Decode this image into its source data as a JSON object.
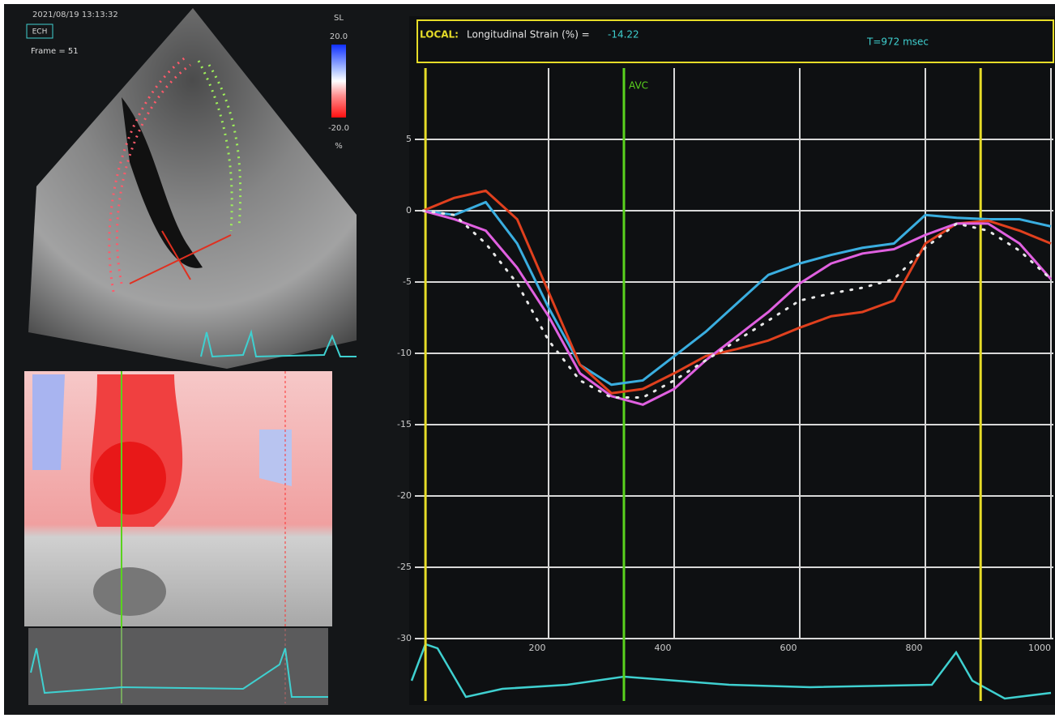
{
  "header": {
    "timestamp": "2021/08/19 13:13:32",
    "mode": "ECH",
    "frame": "Frame = 51"
  },
  "colorbar": {
    "title": "SL",
    "max": "20.0",
    "min": "-20.0",
    "unit": "%"
  },
  "strain_header": {
    "prefix": "LOCAL:",
    "label": "Longitudinal Strain (%) =",
    "value": "-14.22",
    "time": "T=972 msec"
  },
  "chart_data": {
    "type": "line",
    "x": [
      0,
      50,
      100,
      150,
      200,
      250,
      300,
      350,
      400,
      450,
      500,
      550,
      600,
      650,
      700,
      750,
      800,
      850,
      900,
      950,
      1000
    ],
    "series": [
      {
        "color": "#3aaee0",
        "values": [
          0,
          -0.3,
          0.6,
          -2.3,
          -6.8,
          -10.8,
          -12.2,
          -11.9,
          -10.2,
          -8.5,
          -6.5,
          -4.5,
          -3.7,
          -3.1,
          -2.6,
          -2.3,
          -0.3,
          -0.5,
          -0.6,
          -0.6,
          -1.1
        ]
      },
      {
        "color": "#e0401e",
        "values": [
          0,
          0.9,
          1.4,
          -0.6,
          -5.7,
          -10.8,
          -12.8,
          -12.5,
          -11.4,
          -10.2,
          -9.7,
          -9.1,
          -8.2,
          -7.4,
          -7.1,
          -6.3,
          -2.3,
          -0.9,
          -0.7,
          -1.4,
          -2.3
        ]
      },
      {
        "color": "#e060e0",
        "values": [
          0,
          -0.6,
          -1.4,
          -4,
          -7.4,
          -11.4,
          -13,
          -13.6,
          -12.5,
          -10.5,
          -8.8,
          -7.1,
          -5.1,
          -3.7,
          -3,
          -2.7,
          -1.7,
          -0.9,
          -0.9,
          -2.3,
          -4.8
        ]
      },
      {
        "color": "#e8e8e8",
        "dotted": true,
        "values": [
          0,
          -0.3,
          -2.3,
          -5.1,
          -9.1,
          -11.9,
          -13.1,
          -13.1,
          -11.9,
          -10.5,
          -9.1,
          -7.7,
          -6.3,
          -5.8,
          -5.4,
          -4.8,
          -2.6,
          -0.9,
          -1.4,
          -2.8,
          -4.8
        ]
      }
    ],
    "annotations": [
      {
        "label": "AVC",
        "x": 320,
        "color": "#5ad21e"
      }
    ],
    "markers": [
      4,
      888
    ],
    "xlim": [
      0,
      1000
    ],
    "ylim": [
      -30,
      10
    ],
    "xticks": [
      200,
      400,
      600,
      800,
      1000
    ],
    "yticks": [
      5,
      0,
      -5,
      -10,
      -15,
      -20,
      -25,
      -30
    ],
    "grid": true
  }
}
